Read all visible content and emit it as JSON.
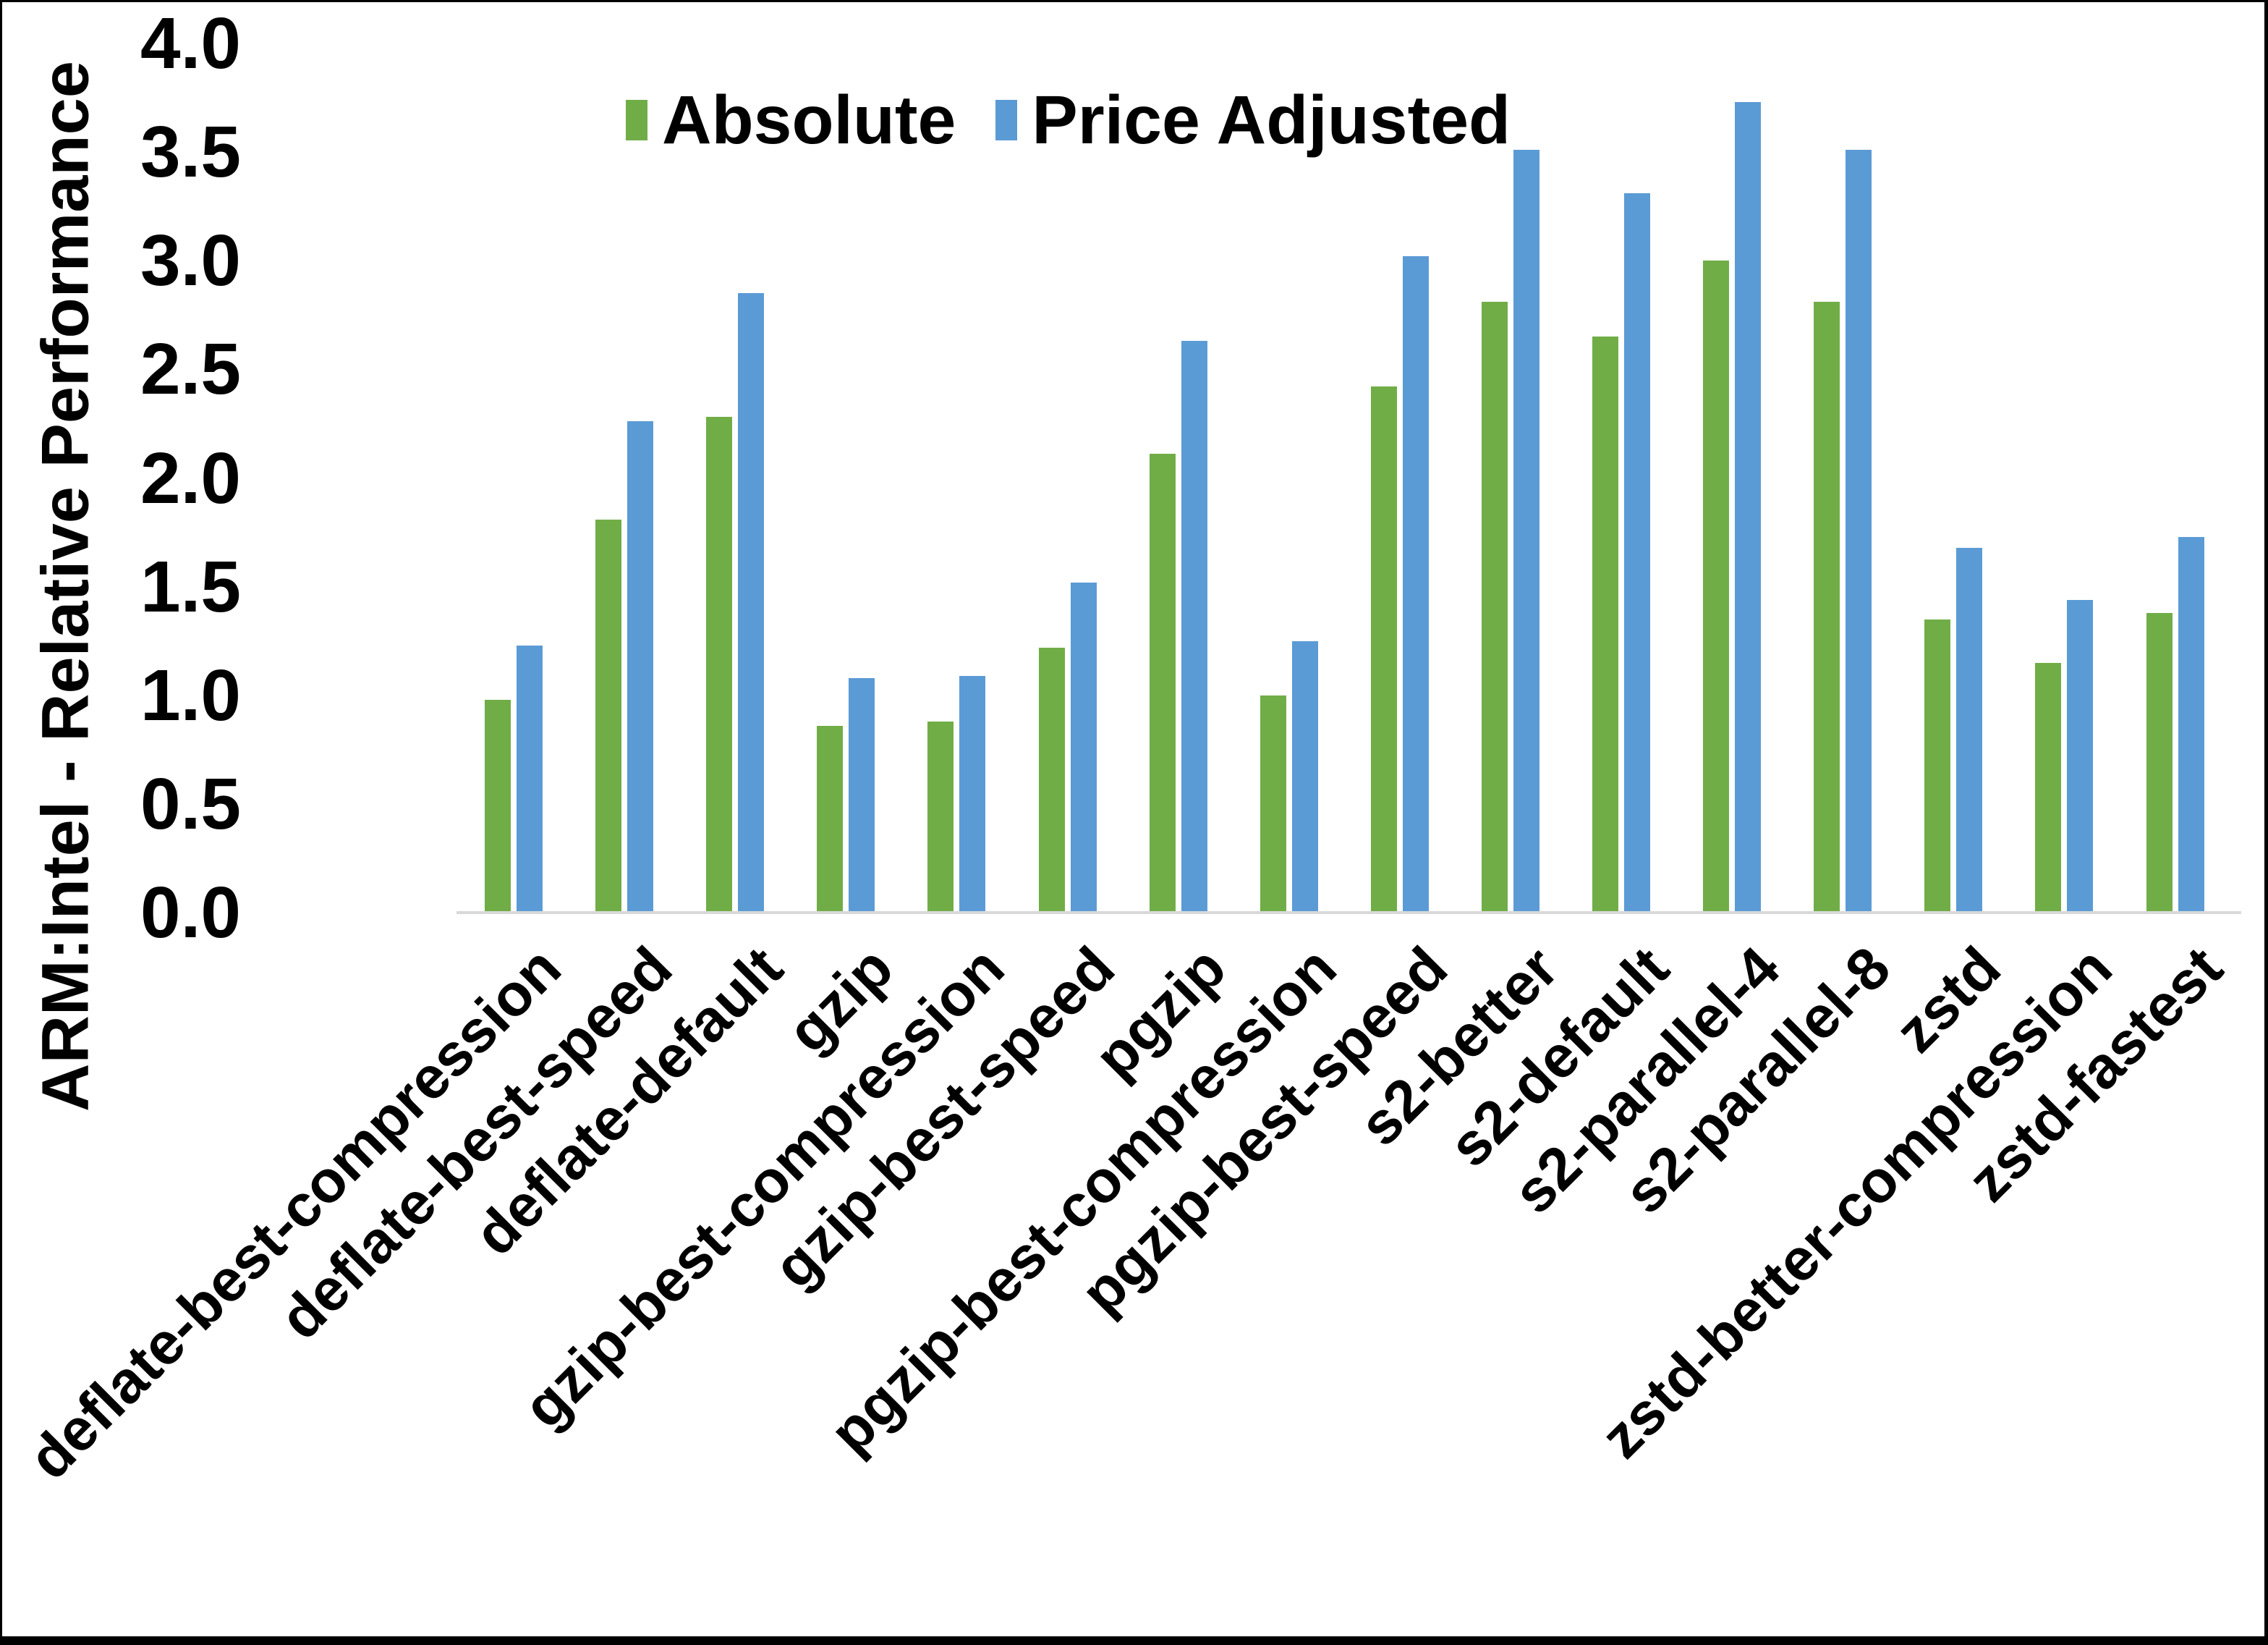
{
  "chart_data": {
    "type": "bar",
    "title": "",
    "xlabel": "",
    "ylabel": "ARM:Intel - Relative Performance",
    "ylim": [
      0.0,
      4.0
    ],
    "ytick_step": 0.5,
    "ytick_labels": [
      "0.0",
      "0.5",
      "1.0",
      "1.5",
      "2.0",
      "2.5",
      "3.0",
      "3.5",
      "4.0"
    ],
    "grid": false,
    "legend_position": "top-center",
    "background": "#ffffff",
    "axis_line_color": "#d9d9d9",
    "categories": [
      "deflate-best-compression",
      "deflate-best-speed",
      "deflate-default",
      "gzip",
      "gzip-best-compression",
      "gzip-best-speed",
      "pgzip",
      "pgzip-best-compression",
      "pgzip-best-speed",
      "s2-better",
      "s2-default",
      "s2-parallel-4",
      "s2-parallel-8",
      "zstd",
      "zstd-better-compression",
      "zstd-fastest"
    ],
    "series": [
      {
        "name": "Absolute",
        "color": "#70AD47",
        "values": [
          0.98,
          1.81,
          2.28,
          0.86,
          0.88,
          1.22,
          2.11,
          1.0,
          2.42,
          2.81,
          2.65,
          3.0,
          2.81,
          1.35,
          1.15,
          1.38
        ]
      },
      {
        "name": "Price Adjusted",
        "color": "#5B9BD5",
        "values": [
          1.23,
          2.26,
          2.85,
          1.08,
          1.09,
          1.52,
          2.63,
          1.25,
          3.02,
          3.51,
          3.31,
          3.73,
          3.51,
          1.68,
          1.44,
          1.73
        ]
      }
    ]
  },
  "layout_note": ""
}
